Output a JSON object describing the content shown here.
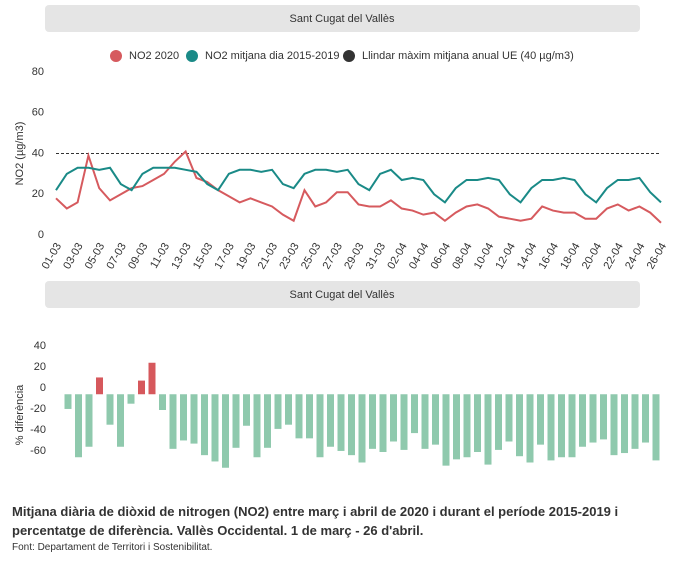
{
  "chart_data": [
    {
      "type": "line",
      "title": "Sant Cugat del Vallès",
      "ylabel": "NO2 (µg/m3)",
      "categories": [
        "01-03",
        null,
        "03-03",
        null,
        "05-03",
        null,
        "07-03",
        null,
        "09-03",
        null,
        "11-03",
        null,
        "13-03",
        null,
        "15-03",
        null,
        "17-03",
        null,
        "19-03",
        null,
        "21-03",
        null,
        "23-03",
        null,
        "25-03",
        null,
        "27-03",
        null,
        "29-03",
        null,
        "31-03",
        null,
        "02-04",
        null,
        "04-04",
        null,
        "06-04",
        null,
        "08-04",
        null,
        "10-04",
        null,
        "12-04",
        null,
        "14-04",
        null,
        "16-04",
        null,
        "18-04",
        null,
        "20-04",
        null,
        "22-04",
        null,
        "24-04",
        null,
        "26-04"
      ],
      "series": [
        {
          "name": "NO2 2020",
          "color": "#d65a5e",
          "values": [
            18,
            13,
            16,
            39,
            23,
            17,
            20,
            23,
            24,
            27,
            30,
            36,
            41,
            28,
            26,
            22,
            19,
            16,
            18,
            16,
            14,
            10,
            7,
            22,
            14,
            16,
            21,
            21,
            15,
            14,
            14,
            17,
            13,
            12,
            10,
            11,
            7,
            11,
            14,
            15,
            13,
            9,
            8,
            7,
            8,
            14,
            12,
            11,
            11,
            8,
            8,
            13,
            15,
            12,
            14,
            11,
            6
          ]
        },
        {
          "name": "NO2 mitjana dia 2015-2019",
          "color": "#1a8a87",
          "values": [
            22,
            30,
            33,
            33,
            32,
            33,
            25,
            22,
            30,
            33,
            33,
            33,
            32,
            31,
            25,
            22,
            30,
            32,
            32,
            31,
            32,
            25,
            23,
            30,
            32,
            32,
            31,
            32,
            25,
            22,
            30,
            32,
            27,
            28,
            27,
            20,
            16,
            23,
            27,
            27,
            28,
            27,
            20,
            16,
            23,
            27,
            27,
            28,
            27,
            20,
            16,
            23,
            27,
            27,
            28,
            21,
            16
          ]
        }
      ],
      "threshold": {
        "name": "Llindar màxim mitjana anual UE (40 µg/m3)",
        "value": 40,
        "color": "#333333"
      },
      "ylim": [
        0,
        80
      ],
      "yticks": [
        0,
        20,
        40,
        60,
        80
      ]
    },
    {
      "type": "bar",
      "title": "Sant Cugat del Vallès",
      "ylabel": "% diferència",
      "values": [
        -14,
        -60,
        -50,
        16,
        -29,
        -50,
        -9,
        13,
        30,
        -15,
        -52,
        -44,
        -47,
        -58,
        -64,
        -70,
        -51,
        -30,
        -60,
        -51,
        -33,
        -29,
        -42,
        -42,
        -60,
        -50,
        -54,
        -58,
        -65,
        -52,
        -55,
        -45,
        -53,
        -37,
        -52,
        -48,
        -68,
        -62,
        -60,
        -55,
        -67,
        -53,
        -45,
        -59,
        -65,
        -48,
        -63,
        -60,
        -60,
        -50,
        -46,
        -43,
        -58,
        -56,
        -52,
        -46,
        -63
      ],
      "positive_color": "#d6585c",
      "negative_color": "#8fc9ad",
      "ylim": [
        -75,
        45
      ],
      "yticks": [
        -60,
        -40,
        -20,
        0,
        20,
        40
      ]
    }
  ],
  "caption": "Mitjana diària de diòxid de nitrogen (NO2) entre març i abril de 2020 i durant el període 2015-2019 i percentatge de diferència. Vallès Occidental. 1 de març - 26 d'abril.",
  "source": "Font: Departament de Territori i Sostenibilitat."
}
